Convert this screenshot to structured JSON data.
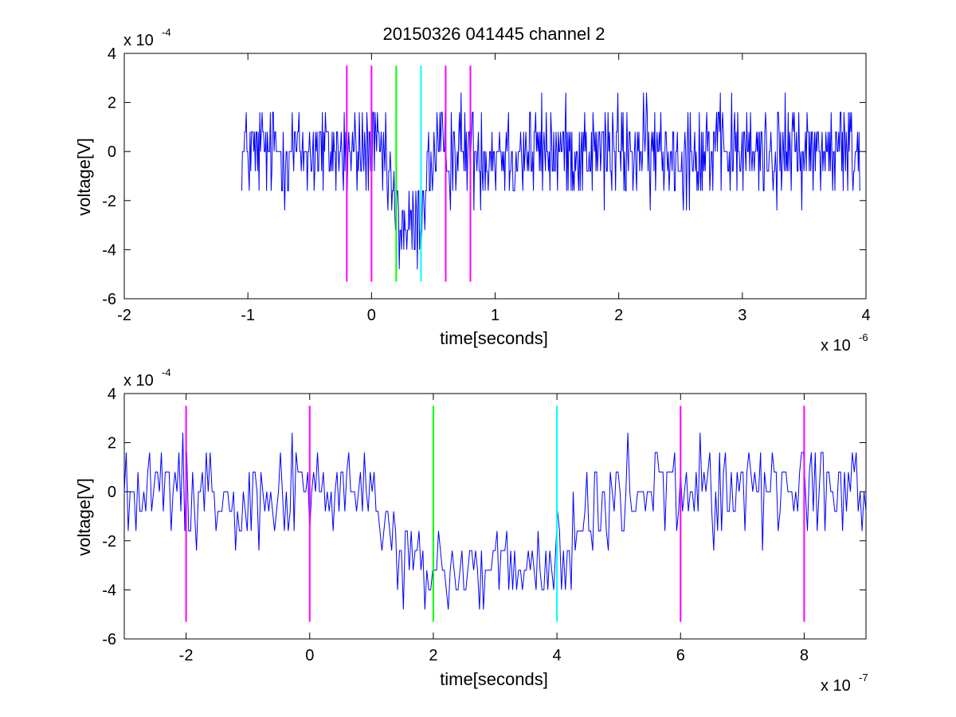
{
  "chart_data": [
    {
      "type": "line",
      "title": "20150326 041445 channel 2",
      "xlabel": "time[seconds]",
      "ylabel": "voltage[V]",
      "x_exponent": {
        "base": "x 10",
        "power": "-6"
      },
      "y_exponent": {
        "base": "x 10",
        "power": "-4"
      },
      "xlim": [
        -2,
        4
      ],
      "ylim": [
        -6,
        4
      ],
      "x_ticks": [
        -2,
        -1,
        0,
        1,
        2,
        3,
        4
      ],
      "x_tick_labels": [
        "-2",
        "-1",
        "0",
        "1",
        "2",
        "3",
        "4"
      ],
      "y_ticks": [
        -6,
        -4,
        -2,
        0,
        2,
        4
      ],
      "y_tick_labels": [
        "-6",
        "-4",
        "-2",
        "0",
        "2",
        "4"
      ],
      "grid": false,
      "signal": {
        "color": "#0000ff",
        "x_range": [
          -1.05,
          3.95
        ],
        "levels": [
          -4.8,
          -4.0,
          -3.2,
          -2.4,
          -1.6,
          -0.8,
          0,
          0.8,
          1.6,
          2.4,
          3.2
        ],
        "baseline": [
          [
            -1.05,
            0
          ],
          [
            0.05,
            0
          ],
          [
            0.15,
            -1.2
          ],
          [
            0.22,
            -3.0
          ],
          [
            0.38,
            -3.2
          ],
          [
            0.45,
            -0.8
          ],
          [
            0.55,
            0
          ],
          [
            3.95,
            0
          ]
        ]
      },
      "markers": [
        {
          "x": -0.2,
          "y_range": [
            -5.3,
            3.5
          ],
          "color": "#ff00ff"
        },
        {
          "x": 0.0,
          "y_range": [
            -5.3,
            3.5
          ],
          "color": "#ff00ff"
        },
        {
          "x": 0.2,
          "y_range": [
            -5.3,
            3.5
          ],
          "color": "#00ff00"
        },
        {
          "x": 0.4,
          "y_range": [
            -5.3,
            3.5
          ],
          "color": "#00ffff"
        },
        {
          "x": 0.6,
          "y_range": [
            -5.3,
            3.5
          ],
          "color": "#ff00ff"
        },
        {
          "x": 0.8,
          "y_range": [
            -5.3,
            3.5
          ],
          "color": "#ff00ff"
        }
      ]
    },
    {
      "type": "line",
      "title": "",
      "xlabel": "time[seconds]",
      "ylabel": "voltage[V]",
      "x_exponent": {
        "base": "x 10",
        "power": "-7"
      },
      "y_exponent": {
        "base": "x 10",
        "power": "-4"
      },
      "xlim": [
        -3,
        9
      ],
      "ylim": [
        -6,
        4
      ],
      "x_ticks": [
        -2,
        0,
        2,
        4,
        6,
        8
      ],
      "x_tick_labels": [
        "-2",
        "0",
        "2",
        "4",
        "6",
        "8"
      ],
      "y_ticks": [
        -6,
        -4,
        -2,
        0,
        2,
        4
      ],
      "y_tick_labels": [
        "-6",
        "-4",
        "-2",
        "0",
        "2",
        "4"
      ],
      "grid": false,
      "signal": {
        "color": "#0000ff",
        "x_range": [
          -3,
          9
        ],
        "levels": [
          -4.8,
          -4.0,
          -3.2,
          -2.4,
          -1.6,
          -0.8,
          0,
          0.8,
          1.6,
          2.4
        ],
        "baseline": [
          [
            -3,
            0
          ],
          [
            0.9,
            0
          ],
          [
            1.3,
            -1.6
          ],
          [
            1.6,
            -3.2
          ],
          [
            3.8,
            -3.4
          ],
          [
            4.2,
            -2.0
          ],
          [
            4.8,
            -0.6
          ],
          [
            5.3,
            0
          ],
          [
            9,
            0.3
          ]
        ]
      },
      "markers": [
        {
          "x": -2,
          "y_range": [
            -5.3,
            3.5
          ],
          "color": "#ff00ff"
        },
        {
          "x": 0,
          "y_range": [
            -5.3,
            3.5
          ],
          "color": "#ff00ff"
        },
        {
          "x": 2,
          "y_range": [
            -5.3,
            3.5
          ],
          "color": "#00ff00"
        },
        {
          "x": 4,
          "y_range": [
            -5.3,
            3.5
          ],
          "color": "#00ffff"
        },
        {
          "x": 6,
          "y_range": [
            -5.3,
            3.5
          ],
          "color": "#ff00ff"
        },
        {
          "x": 8,
          "y_range": [
            -5.3,
            3.5
          ],
          "color": "#ff00ff"
        }
      ]
    }
  ]
}
